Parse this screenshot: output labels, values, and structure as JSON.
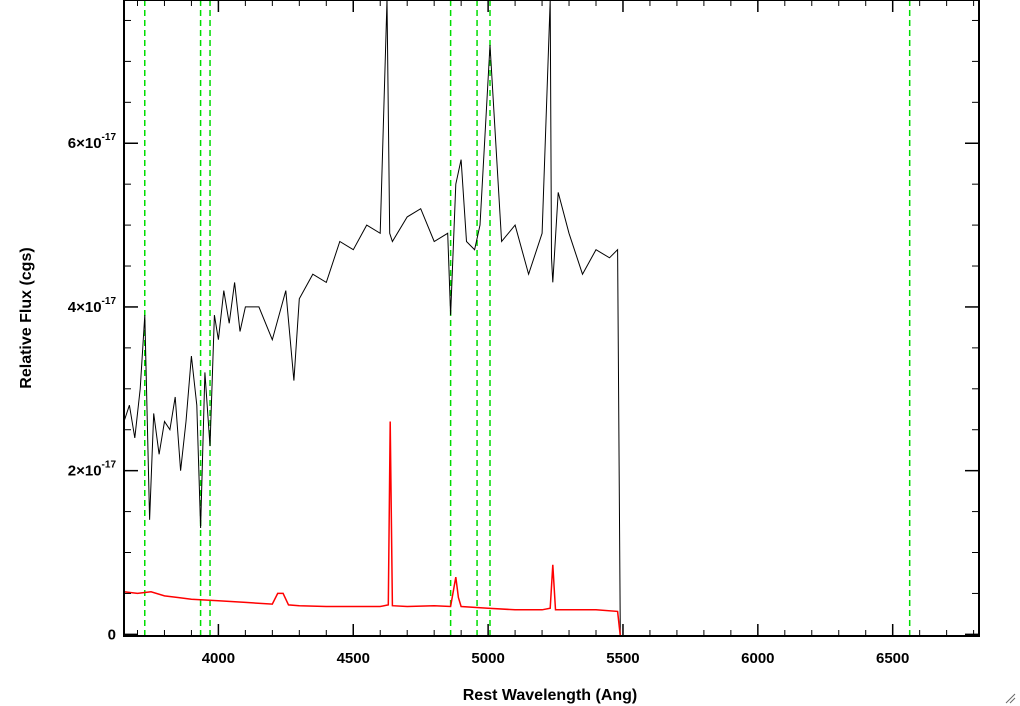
{
  "chart_data": {
    "type": "line",
    "xlabel": "Rest Wavelength (Ang)",
    "ylabel": "Relative Flux (cgs)",
    "xlim": [
      3650,
      6820
    ],
    "ylim": [
      -2e-19,
      7.75e-17
    ],
    "x_ticks": [
      {
        "value": 4000,
        "label": "4000"
      },
      {
        "value": 4500,
        "label": "4500"
      },
      {
        "value": 5000,
        "label": "5000"
      },
      {
        "value": 5500,
        "label": "5500"
      },
      {
        "value": 6000,
        "label": "6000"
      },
      {
        "value": 6500,
        "label": "6500"
      }
    ],
    "y_ticks": [
      {
        "value": 0,
        "mantissa": "0",
        "exponent": ""
      },
      {
        "value": 2e-17,
        "mantissa": "2×10",
        "exponent": "-17"
      },
      {
        "value": 4e-17,
        "mantissa": "4×10",
        "exponent": "-17"
      },
      {
        "value": 6e-17,
        "mantissa": "6×10",
        "exponent": "-17"
      }
    ],
    "vlines": [
      3727,
      3934,
      3969,
      4861,
      4959,
      5007,
      6563
    ],
    "vline_color": "#00dd00",
    "series": [
      {
        "color": "#000000",
        "x": [
          3650,
          3670,
          3690,
          3710,
          3727,
          3745,
          3760,
          3780,
          3800,
          3820,
          3840,
          3860,
          3880,
          3900,
          3920,
          3934,
          3950,
          3969,
          3985,
          4000,
          4020,
          4040,
          4060,
          4080,
          4100,
          4150,
          4200,
          4250,
          4280,
          4300,
          4350,
          4400,
          4450,
          4500,
          4550,
          4600,
          4625,
          4635,
          4645,
          4700,
          4750,
          4800,
          4850,
          4861,
          4880,
          4900,
          4920,
          4950,
          4970,
          5007,
          5050,
          5100,
          5150,
          5200,
          5230,
          5235,
          5240,
          5260,
          5300,
          5350,
          5400,
          5450,
          5480,
          5490
        ],
        "y": [
          2.6e-17,
          2.8e-17,
          2.4e-17,
          3e-17,
          3.9e-17,
          1.4e-17,
          2.7e-17,
          2.2e-17,
          2.6e-17,
          2.5e-17,
          2.9e-17,
          2e-17,
          2.6e-17,
          3.4e-17,
          2.8e-17,
          1.3e-17,
          3.2e-17,
          2.3e-17,
          3.9e-17,
          3.6e-17,
          4.2e-17,
          3.8e-17,
          4.3e-17,
          3.7e-17,
          4e-17,
          4e-17,
          3.6e-17,
          4.2e-17,
          3.1e-17,
          4.1e-17,
          4.4e-17,
          4.3e-17,
          4.8e-17,
          4.7e-17,
          5e-17,
          4.9e-17,
          8e-17,
          4.9e-17,
          4.8e-17,
          5.1e-17,
          5.2e-17,
          4.8e-17,
          4.9e-17,
          3.9e-17,
          5.5e-17,
          5.8e-17,
          4.8e-17,
          4.7e-17,
          5e-17,
          7.2e-17,
          4.8e-17,
          5e-17,
          4.4e-17,
          4.9e-17,
          8e-17,
          4.6e-17,
          4.3e-17,
          5.4e-17,
          4.9e-17,
          4.4e-17,
          4.7e-17,
          4.6e-17,
          4.7e-17,
          0.0
        ]
      },
      {
        "color": "#ff0000",
        "x": [
          3650,
          3700,
          3750,
          3800,
          3850,
          3900,
          3950,
          4000,
          4100,
          4200,
          4220,
          4240,
          4260,
          4300,
          4400,
          4500,
          4600,
          4630,
          4637,
          4645,
          4700,
          4800,
          4861,
          4880,
          4890,
          4900,
          5000,
          5100,
          5200,
          5230,
          5240,
          5250,
          5300,
          5400,
          5480,
          5490,
          6820
        ],
        "y": [
          5.2e-18,
          5e-18,
          5.2e-18,
          4.7e-18,
          4.5e-18,
          4.3e-18,
          4.2e-18,
          4.1e-18,
          3.9e-18,
          3.7e-18,
          5e-18,
          5e-18,
          3.6e-18,
          3.5e-18,
          3.4e-18,
          3.4e-18,
          3.4e-18,
          3.6e-18,
          2.6e-17,
          3.5e-18,
          3.4e-18,
          3.5e-18,
          3.4e-18,
          7e-18,
          4.5e-18,
          3.4e-18,
          3.2e-18,
          3e-18,
          3e-18,
          3.2e-18,
          8.5e-18,
          3e-18,
          3e-18,
          3e-18,
          2.8e-18,
          -2e-19,
          -2e-19
        ]
      }
    ]
  }
}
